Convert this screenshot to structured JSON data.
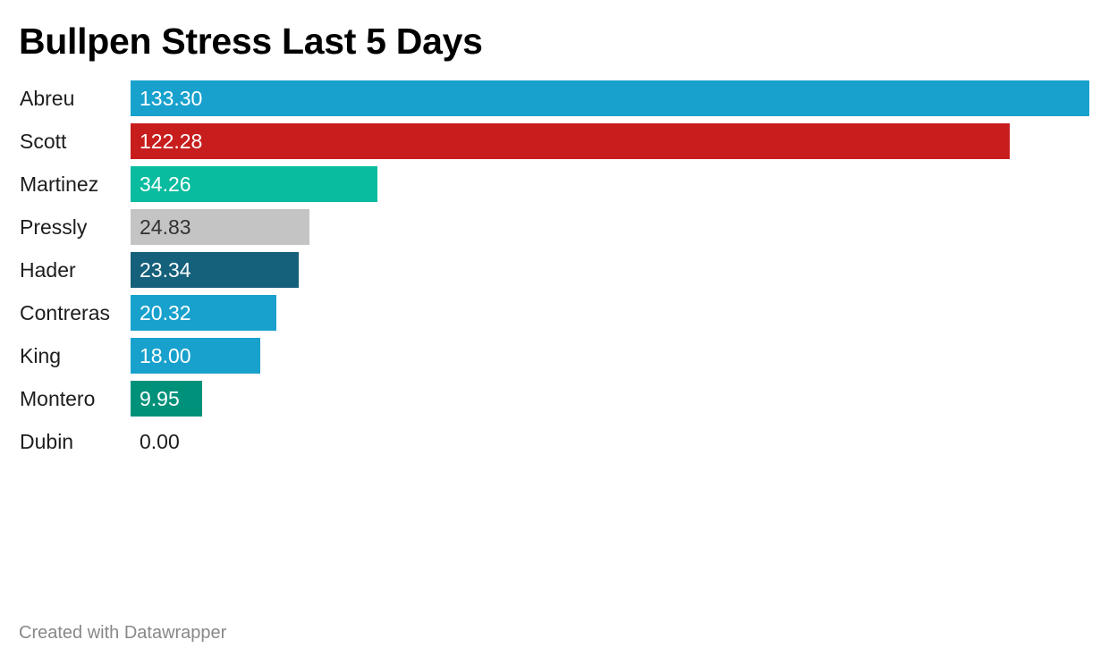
{
  "chart_data": {
    "type": "bar",
    "orientation": "horizontal",
    "title": "Bullpen Stress Last 5 Days",
    "xlabel": "",
    "ylabel": "",
    "categories": [
      "Abreu",
      "Scott",
      "Martinez",
      "Pressly",
      "Hader",
      "Contreras",
      "King",
      "Montero",
      "Dubin"
    ],
    "values": [
      133.3,
      122.28,
      34.26,
      24.83,
      23.34,
      20.32,
      18.0,
      9.95,
      0.0
    ],
    "value_labels": [
      "133.30",
      "122.28",
      "34.26",
      "24.83",
      "23.34",
      "20.32",
      "18.00",
      "9.95",
      "0.00"
    ],
    "colors": [
      "#18a1cd",
      "#c71e1d",
      "#09bb9f",
      "#c4c4c4",
      "#15607a",
      "#18a1cd",
      "#18a1cd",
      "#00917a",
      "#c4c4c4"
    ],
    "label_colors": [
      "#ffffff",
      "#ffffff",
      "#ffffff",
      "#333333",
      "#ffffff",
      "#ffffff",
      "#ffffff",
      "#ffffff",
      "#1d1d1d"
    ],
    "xlim": [
      0,
      133.3
    ],
    "grid": false,
    "legend": "none"
  },
  "footer": {
    "credit": "Created with Datawrapper"
  }
}
